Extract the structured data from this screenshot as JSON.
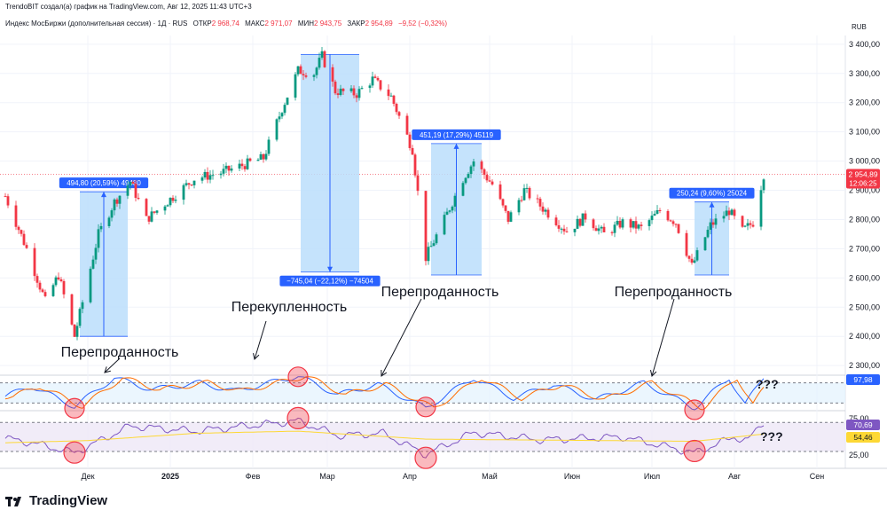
{
  "header": {
    "credit": "TrendoBIT создал(а) график на TradingView.com, Авг 12, 2025 11:43 UTC+3",
    "symbol": "Индекс МосБиржи (дополнительная сессия) · 1Д · RUS",
    "open_label": "ОТКР",
    "open": "2 968,74",
    "high_label": "МАКС",
    "high": "2 971,07",
    "low_label": "МИН",
    "low": "2 943,75",
    "close_label": "ЗАКР",
    "close": "2 954,89",
    "change": "−9,52 (−0,32%)"
  },
  "currency": "RUB",
  "last_price": {
    "value": "2 954,89",
    "time": "12:06:25"
  },
  "indicator_values": {
    "stoch": "97,98",
    "rsi": "70,69",
    "rsi_ma": "54,46"
  },
  "brand": "TradingView",
  "colors": {
    "up": "#089981",
    "down": "#f23645",
    "measure_fill": "#bbdefb",
    "measure_line": "#2962ff",
    "circle": "#f23645",
    "stoch_k": "#2962ff",
    "stoch_d": "#ff6d00",
    "rsi": "#7e57c2",
    "rsi_ma": "#fdd835"
  },
  "annotations": [
    {
      "text": "Перепроданность"
    },
    {
      "text": "Перекупленность"
    },
    {
      "text": "Перепроданность"
    },
    {
      "text": "Перепроданность"
    }
  ],
  "question_marks": [
    "???",
    "???"
  ],
  "measures": [
    {
      "label": "494,80 (20,59%) 49480",
      "from": 2400,
      "to": 2895,
      "direction": "up"
    },
    {
      "label": "−745,04 (−22,12%) −74504",
      "from": 3365,
      "to": 2620,
      "direction": "down"
    },
    {
      "label": "451,19 (17,29%) 45119",
      "from": 2610,
      "to": 3060,
      "direction": "up"
    },
    {
      "label": "250,24 (9,60%) 25024",
      "from": 2610,
      "to": 2860,
      "direction": "up"
    }
  ],
  "chart_data": {
    "type": "candlestick",
    "title": "Индекс МосБиржи (дополнительная сессия)",
    "y_axis_ticks": [
      "3 400,00",
      "3 300,00",
      "3 200,00",
      "3 100,00",
      "3 000,00",
      "2 900,00",
      "2 800,00",
      "2 700,00",
      "2 600,00",
      "2 500,00",
      "2 400,00",
      "2 300,00"
    ],
    "ylim": [
      2270,
      3430
    ],
    "x_axis_ticks": [
      "Дек",
      "2025",
      "Фев",
      "Мар",
      "Апр",
      "Май",
      "Июн",
      "Июл",
      "Авг",
      "Сен"
    ],
    "anchors": [
      {
        "date": "2024-10-31",
        "value": 2880
      },
      {
        "date": "2024-11-08",
        "value": 2700
      },
      {
        "date": "2024-11-15",
        "value": 2520
      },
      {
        "date": "2024-11-20",
        "value": 2610
      },
      {
        "date": "2024-11-26",
        "value": 2400
      },
      {
        "date": "2024-12-05",
        "value": 2750
      },
      {
        "date": "2024-12-11",
        "value": 2860
      },
      {
        "date": "2024-12-17",
        "value": 2930
      },
      {
        "date": "2024-12-23",
        "value": 2800
      },
      {
        "date": "2025-01-10",
        "value": 2940
      },
      {
        "date": "2025-01-20",
        "value": 2960
      },
      {
        "date": "2025-01-28",
        "value": 2985
      },
      {
        "date": "2025-02-05",
        "value": 3010
      },
      {
        "date": "2025-02-12",
        "value": 3180
      },
      {
        "date": "2025-02-18",
        "value": 3310
      },
      {
        "date": "2025-02-24",
        "value": 3300
      },
      {
        "date": "2025-02-27",
        "value": 3360
      },
      {
        "date": "2025-03-04",
        "value": 3240
      },
      {
        "date": "2025-03-12",
        "value": 3230
      },
      {
        "date": "2025-03-18",
        "value": 3280
      },
      {
        "date": "2025-03-25",
        "value": 3220
      },
      {
        "date": "2025-04-02",
        "value": 3040
      },
      {
        "date": "2025-04-07",
        "value": 2670
      },
      {
        "date": "2025-04-14",
        "value": 2800
      },
      {
        "date": "2025-04-21",
        "value": 2940
      },
      {
        "date": "2025-04-25",
        "value": 3000
      },
      {
        "date": "2025-05-02",
        "value": 2920
      },
      {
        "date": "2025-05-08",
        "value": 2800
      },
      {
        "date": "2025-05-14",
        "value": 2900
      },
      {
        "date": "2025-05-22",
        "value": 2830
      },
      {
        "date": "2025-05-30",
        "value": 2760
      },
      {
        "date": "2025-06-06",
        "value": 2810
      },
      {
        "date": "2025-06-13",
        "value": 2750
      },
      {
        "date": "2025-06-20",
        "value": 2790
      },
      {
        "date": "2025-06-27",
        "value": 2770
      },
      {
        "date": "2025-07-04",
        "value": 2830
      },
      {
        "date": "2025-07-10",
        "value": 2790
      },
      {
        "date": "2025-07-16",
        "value": 2640
      },
      {
        "date": "2025-07-23",
        "value": 2780
      },
      {
        "date": "2025-07-30",
        "value": 2830
      },
      {
        "date": "2025-08-04",
        "value": 2760
      },
      {
        "date": "2025-08-08",
        "value": 2790
      },
      {
        "date": "2025-08-12",
        "value": 2955
      }
    ],
    "stochastic_k": [
      {
        "date": "2024-10-31",
        "value": 40
      },
      {
        "date": "2024-11-10",
        "value": 70
      },
      {
        "date": "2024-11-26",
        "value": 10
      },
      {
        "date": "2024-12-11",
        "value": 95
      },
      {
        "date": "2024-12-25",
        "value": 60
      },
      {
        "date": "2025-01-12",
        "value": 80
      },
      {
        "date": "2025-01-25",
        "value": 55
      },
      {
        "date": "2025-02-18",
        "value": 100
      },
      {
        "date": "2025-03-05",
        "value": 45
      },
      {
        "date": "2025-03-20",
        "value": 75
      },
      {
        "date": "2025-04-07",
        "value": 5
      },
      {
        "date": "2025-04-25",
        "value": 95
      },
      {
        "date": "2025-05-10",
        "value": 35
      },
      {
        "date": "2025-05-25",
        "value": 75
      },
      {
        "date": "2025-06-10",
        "value": 30
      },
      {
        "date": "2025-06-28",
        "value": 80
      },
      {
        "date": "2025-07-17",
        "value": 5
      },
      {
        "date": "2025-07-30",
        "value": 95
      },
      {
        "date": "2025-08-05",
        "value": 15
      },
      {
        "date": "2025-08-12",
        "value": 98
      }
    ],
    "rsi": [
      {
        "date": "2024-10-31",
        "value": 48
      },
      {
        "date": "2024-11-10",
        "value": 42
      },
      {
        "date": "2024-11-26",
        "value": 28
      },
      {
        "date": "2024-12-17",
        "value": 65
      },
      {
        "date": "2025-01-10",
        "value": 58
      },
      {
        "date": "2025-02-18",
        "value": 72
      },
      {
        "date": "2025-03-05",
        "value": 52
      },
      {
        "date": "2025-03-22",
        "value": 55
      },
      {
        "date": "2025-04-07",
        "value": 26
      },
      {
        "date": "2025-04-25",
        "value": 56
      },
      {
        "date": "2025-05-20",
        "value": 46
      },
      {
        "date": "2025-06-20",
        "value": 50
      },
      {
        "date": "2025-07-17",
        "value": 28
      },
      {
        "date": "2025-08-01",
        "value": 50
      },
      {
        "date": "2025-08-06",
        "value": 45
      },
      {
        "date": "2025-08-12",
        "value": 71
      }
    ],
    "rsi_ma": [
      {
        "date": "2024-10-31",
        "value": 42
      },
      {
        "date": "2024-12-01",
        "value": 45
      },
      {
        "date": "2025-01-10",
        "value": 55
      },
      {
        "date": "2025-02-18",
        "value": 58
      },
      {
        "date": "2025-04-07",
        "value": 47
      },
      {
        "date": "2025-05-10",
        "value": 46
      },
      {
        "date": "2025-07-17",
        "value": 44
      },
      {
        "date": "2025-08-12",
        "value": 54
      }
    ],
    "stoch_bands": [
      80,
      20
    ],
    "stoch_band_ticks": [],
    "rsi_bands": [
      70,
      30
    ],
    "rsi_axis_ticks": [
      "75,00",
      "25,00"
    ],
    "circled_dates": [
      "2024-11-26",
      "2025-02-18",
      "2025-04-07",
      "2025-07-17"
    ]
  }
}
